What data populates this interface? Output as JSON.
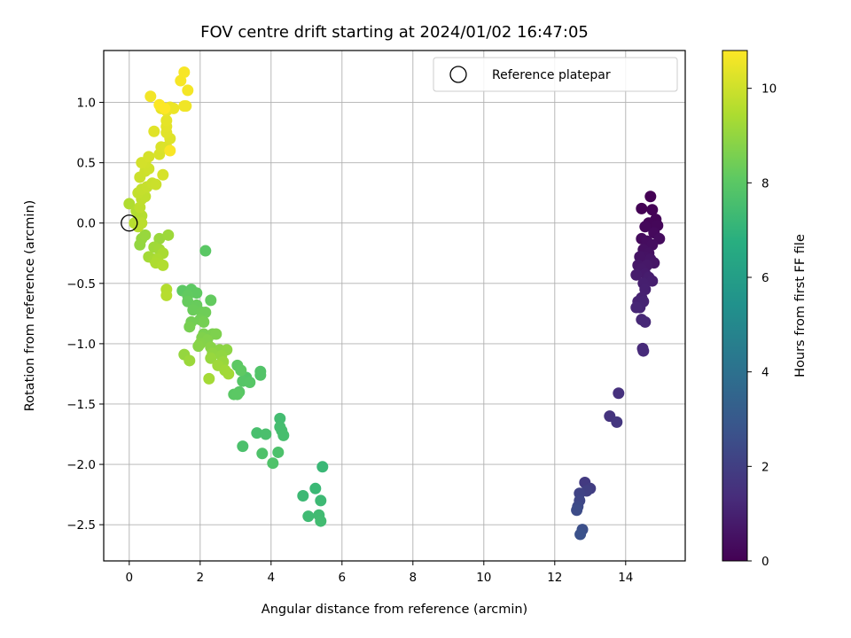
{
  "chart_data": {
    "type": "scatter",
    "title": "FOV centre drift starting at 2024/01/02 16:47:05",
    "xlabel": "Angular distance from reference (arcmin)",
    "ylabel": "Rotation from reference (arcmin)",
    "xlim": [
      -0.72,
      15.68
    ],
    "ylim": [
      -2.8,
      1.43
    ],
    "xticks": [
      "0",
      "2",
      "4",
      "6",
      "8",
      "10",
      "12",
      "14"
    ],
    "yticks": [
      "1.0",
      "0.5",
      "0.0",
      "−0.5",
      "−1.0",
      "−1.5",
      "−2.0",
      "−2.5"
    ],
    "grid": true,
    "legend": {
      "position": "upper right",
      "entries": [
        "Reference platepar"
      ]
    },
    "colorbar": {
      "label": "Hours from first FF file",
      "colormap": "viridis",
      "range": [
        0,
        10.8
      ],
      "ticks": [
        "0",
        "2",
        "4",
        "6",
        "8",
        "10"
      ]
    },
    "reference_point": {
      "x": 0,
      "y": 0,
      "label": "Reference platepar"
    },
    "series": [
      {
        "hours_from": 0.0,
        "hours_to": 1.3,
        "points": [
          [
            14.7,
            0.22
          ],
          [
            14.45,
            0.12
          ],
          [
            14.75,
            0.11
          ],
          [
            14.85,
            0.03
          ],
          [
            14.65,
            0.0
          ],
          [
            14.9,
            -0.02
          ],
          [
            14.55,
            -0.03
          ],
          [
            14.8,
            -0.08
          ],
          [
            14.45,
            -0.13
          ],
          [
            14.95,
            -0.13
          ],
          [
            14.6,
            -0.15
          ],
          [
            14.75,
            -0.18
          ],
          [
            14.5,
            -0.22
          ],
          [
            14.65,
            -0.25
          ],
          [
            14.55,
            -0.28
          ],
          [
            14.4,
            -0.28
          ],
          [
            14.7,
            -0.3
          ],
          [
            14.8,
            -0.33
          ],
          [
            14.35,
            -0.35
          ],
          [
            14.6,
            -0.35
          ],
          [
            14.45,
            -0.38
          ],
          [
            14.55,
            -0.42
          ],
          [
            14.3,
            -0.43
          ],
          [
            14.65,
            -0.45
          ],
          [
            14.75,
            -0.48
          ],
          [
            14.5,
            -0.5
          ],
          [
            14.55,
            -0.55
          ],
          [
            14.45,
            -0.62
          ],
          [
            14.35,
            -0.65
          ],
          [
            14.5,
            -0.65
          ],
          [
            14.4,
            -0.7
          ],
          [
            14.3,
            -0.7
          ],
          [
            14.45,
            -0.8
          ],
          [
            14.55,
            -0.82
          ],
          [
            14.48,
            -1.04
          ],
          [
            14.5,
            -1.06
          ]
        ]
      },
      {
        "hours_from": 1.5,
        "hours_to": 2.7,
        "points": [
          [
            13.8,
            -1.41
          ],
          [
            13.55,
            -1.6
          ],
          [
            13.75,
            -1.65
          ],
          [
            12.85,
            -2.15
          ],
          [
            13.0,
            -2.2
          ],
          [
            12.9,
            -2.22
          ],
          [
            12.7,
            -2.24
          ],
          [
            12.7,
            -2.3
          ],
          [
            12.65,
            -2.35
          ],
          [
            12.62,
            -2.38
          ],
          [
            12.78,
            -2.54
          ],
          [
            12.72,
            -2.58
          ]
        ]
      },
      {
        "hours_from": 7.2,
        "hours_to": 8.1,
        "points": [
          [
            5.45,
            -2.02
          ],
          [
            5.25,
            -2.2
          ],
          [
            4.9,
            -2.26
          ],
          [
            5.4,
            -2.3
          ],
          [
            5.05,
            -2.43
          ],
          [
            5.35,
            -2.42
          ],
          [
            5.4,
            -2.47
          ],
          [
            4.25,
            -1.62
          ],
          [
            4.25,
            -1.69
          ],
          [
            4.3,
            -1.72
          ],
          [
            4.35,
            -1.76
          ],
          [
            3.6,
            -1.74
          ],
          [
            3.85,
            -1.75
          ],
          [
            3.2,
            -1.85
          ],
          [
            4.2,
            -1.9
          ],
          [
            3.75,
            -1.91
          ],
          [
            4.05,
            -1.99
          ],
          [
            3.7,
            -1.23
          ],
          [
            3.7,
            -1.26
          ],
          [
            3.3,
            -1.28
          ],
          [
            3.2,
            -1.31
          ],
          [
            3.4,
            -1.32
          ],
          [
            3.1,
            -1.4
          ],
          [
            2.95,
            -1.42
          ],
          [
            3.05,
            -1.42
          ],
          [
            3.05,
            -1.18
          ],
          [
            3.15,
            -1.22
          ]
        ]
      },
      {
        "hours_from": 8.0,
        "hours_to": 9.3,
        "points": [
          [
            2.15,
            -0.23
          ],
          [
            1.5,
            -0.56
          ],
          [
            1.75,
            -0.55
          ],
          [
            1.9,
            -0.58
          ],
          [
            1.65,
            -0.6
          ],
          [
            2.3,
            -0.64
          ],
          [
            1.65,
            -0.65
          ],
          [
            1.9,
            -0.68
          ],
          [
            1.8,
            -0.72
          ],
          [
            2.05,
            -0.74
          ],
          [
            2.15,
            -0.74
          ],
          [
            2.0,
            -0.8
          ],
          [
            1.75,
            -0.82
          ],
          [
            2.1,
            -0.82
          ],
          [
            1.7,
            -0.86
          ],
          [
            2.1,
            -0.92
          ],
          [
            2.35,
            -0.92
          ],
          [
            2.45,
            -0.92
          ],
          [
            2.05,
            -0.95
          ],
          [
            2.2,
            -0.97
          ],
          [
            2.0,
            -1.0
          ],
          [
            1.95,
            -1.02
          ],
          [
            2.3,
            -1.03
          ],
          [
            2.55,
            -1.05
          ],
          [
            2.75,
            -1.05
          ],
          [
            2.35,
            -1.08
          ],
          [
            2.6,
            -1.1
          ],
          [
            1.55,
            -1.09
          ],
          [
            2.3,
            -1.12
          ],
          [
            2.65,
            -1.15
          ],
          [
            1.7,
            -1.14
          ],
          [
            2.5,
            -1.18
          ],
          [
            2.7,
            -1.22
          ],
          [
            2.8,
            -1.25
          ],
          [
            2.25,
            -1.29
          ]
        ]
      },
      {
        "hours_from": 9.0,
        "hours_to": 9.6,
        "points": [
          [
            0.3,
            -0.18
          ],
          [
            0.35,
            -0.13
          ],
          [
            0.45,
            -0.1
          ],
          [
            0.85,
            -0.13
          ],
          [
            1.1,
            -0.1
          ],
          [
            0.7,
            -0.2
          ],
          [
            0.85,
            -0.22
          ],
          [
            0.55,
            -0.28
          ],
          [
            0.7,
            -0.3
          ],
          [
            0.95,
            -0.25
          ],
          [
            0.8,
            -0.3
          ],
          [
            0.75,
            -0.33
          ],
          [
            0.95,
            -0.35
          ],
          [
            1.05,
            -0.55
          ],
          [
            1.05,
            -0.6
          ]
        ]
      },
      {
        "hours_from": 9.5,
        "hours_to": 10.8,
        "points": [
          [
            0.0,
            0.16
          ],
          [
            0.2,
            0.1
          ],
          [
            0.25,
            0.03
          ],
          [
            0.35,
            0.06
          ],
          [
            0.15,
            0.0
          ],
          [
            0.25,
            -0.03
          ],
          [
            0.35,
            0.0
          ],
          [
            0.3,
            0.13
          ],
          [
            0.35,
            0.2
          ],
          [
            0.45,
            0.22
          ],
          [
            0.25,
            0.25
          ],
          [
            0.35,
            0.28
          ],
          [
            0.5,
            0.3
          ],
          [
            0.65,
            0.33
          ],
          [
            0.75,
            0.32
          ],
          [
            0.3,
            0.38
          ],
          [
            0.45,
            0.43
          ],
          [
            0.55,
            0.45
          ],
          [
            0.45,
            0.5
          ],
          [
            0.35,
            0.5
          ],
          [
            0.55,
            0.55
          ],
          [
            0.95,
            0.4
          ],
          [
            0.85,
            0.57
          ],
          [
            0.9,
            0.63
          ],
          [
            1.05,
            0.63
          ],
          [
            1.15,
            0.7
          ],
          [
            0.7,
            0.76
          ],
          [
            1.05,
            0.75
          ],
          [
            1.05,
            0.8
          ],
          [
            1.05,
            0.85
          ],
          [
            0.9,
            0.95
          ],
          [
            1.05,
            0.93
          ],
          [
            1.15,
            0.96
          ],
          [
            1.25,
            0.95
          ],
          [
            1.6,
            0.97
          ],
          [
            1.55,
            0.97
          ],
          [
            0.6,
            1.05
          ],
          [
            1.65,
            1.1
          ],
          [
            1.45,
            1.18
          ],
          [
            1.55,
            1.25
          ],
          [
            1.15,
            0.6
          ],
          [
            0.85,
            0.98
          ],
          [
            1.0,
            0.95
          ]
        ]
      }
    ]
  }
}
